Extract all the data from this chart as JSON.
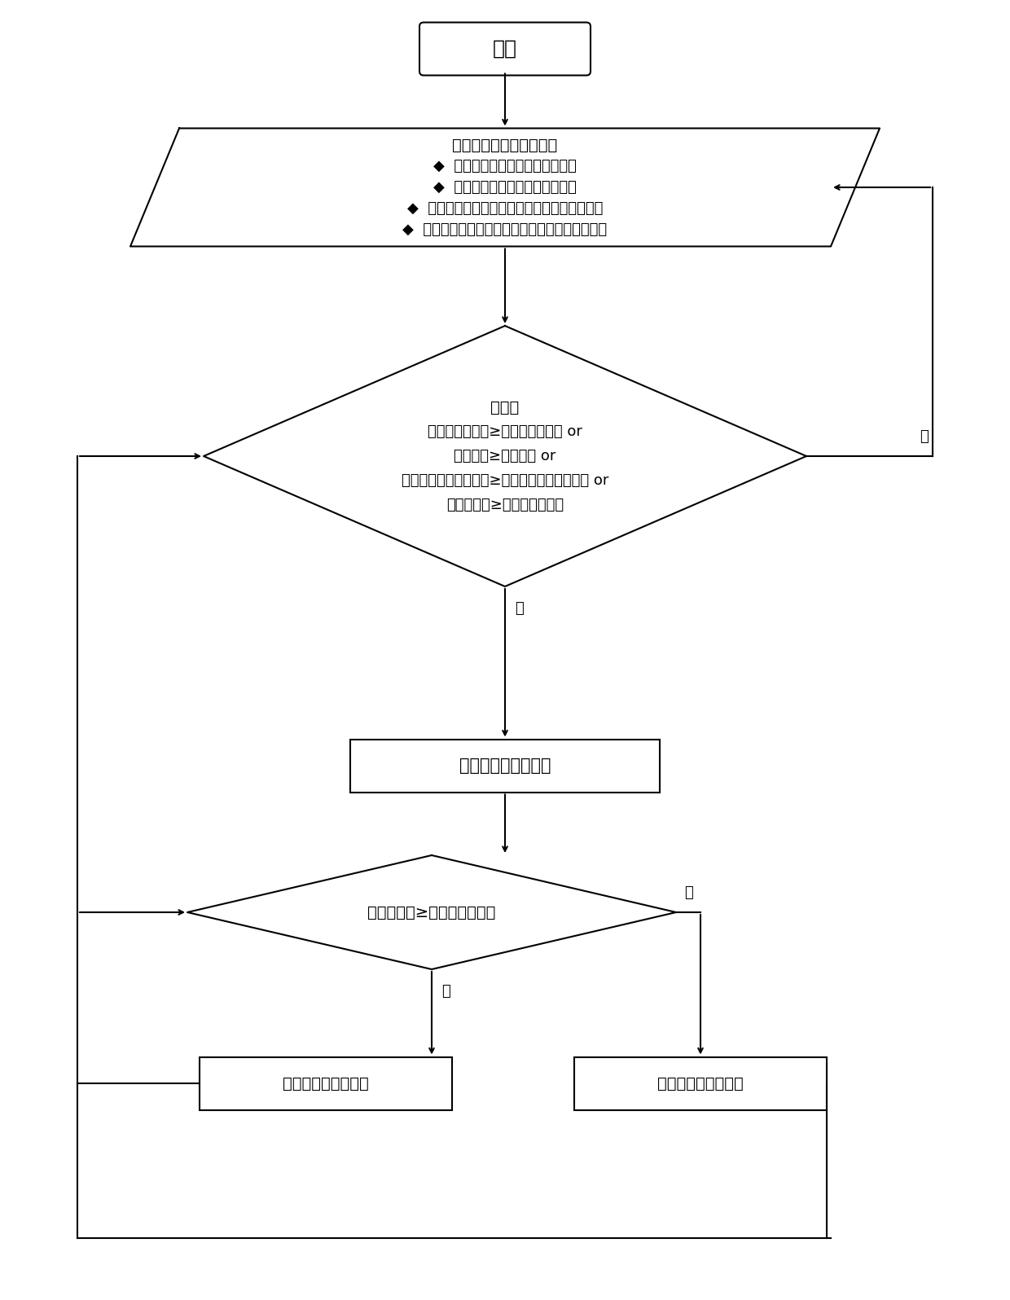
{
  "bg_color": "#ffffff",
  "line_color": "#000000",
  "text_color": "#000000",
  "lw": 1.5,
  "start_text": "开始",
  "para_lines": [
    "实时监测数据信号输入：",
    "◆  天气预报信息：最大可能降雨量",
    "◆  透水路面数据：路面各层湿度值",
    "◆  气象站实时数据：降雨量、最大瞬时降雨强度",
    "◆  城市管网信息：管网节点开启状态、管网径流量"
  ],
  "d1_lines": [
    "判断：",
    "最大可能降雨量≥容许最大降雨量 or",
    "路面湿度≥容许湿度 or",
    "实际最大瞬时降雨强度≥容许最大瞬时降雨强度 or",
    "实际降雨量≥容许最大降雨量"
  ],
  "rect1_text": "路面管网排水阀开启",
  "d2_text": "管网径流量≥容许管网径流量",
  "rect2_text": "溢流阀和排涝泵开启",
  "rect3_text": "溢流阀和排涝泵关闭",
  "yes_label": "是",
  "no_label": "否"
}
